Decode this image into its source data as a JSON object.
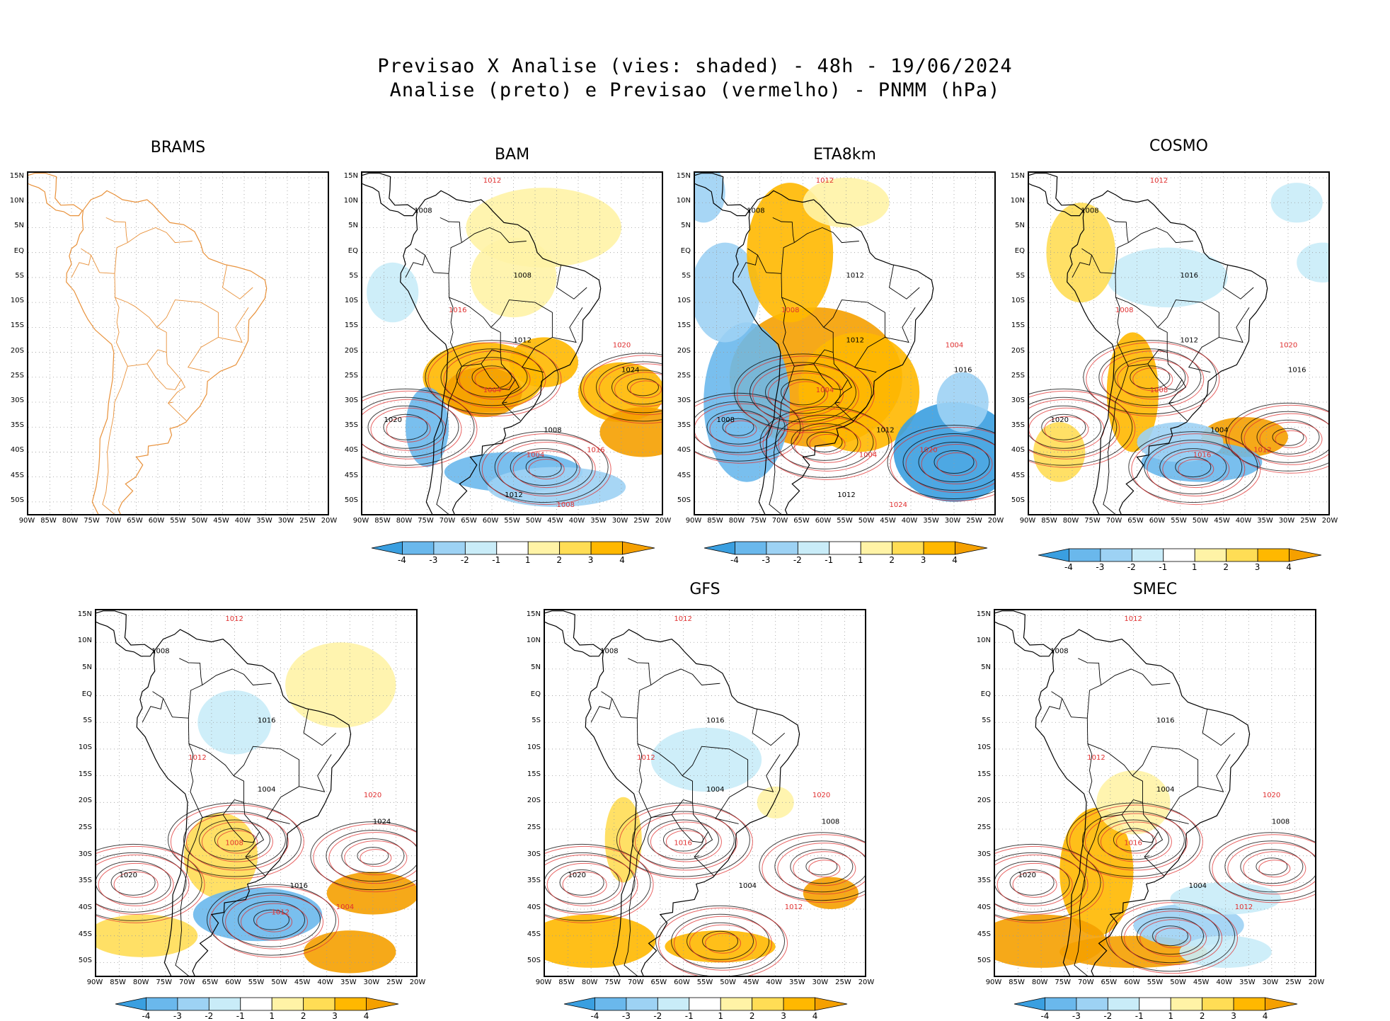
{
  "header": {
    "line1": "Previsao X Analise (vies: shaded) - 48h - 19/06/2024",
    "line2": "Analise (preto) e Previsao (vermelho) - PNMM (hPa)"
  },
  "axes": {
    "lat_labels": [
      "15N",
      "10N",
      "5N",
      "EQ",
      "5S",
      "10S",
      "15S",
      "20S",
      "25S",
      "30S",
      "35S",
      "40S",
      "45S",
      "50S"
    ],
    "lon_labels": [
      "90W",
      "85W",
      "80W",
      "75W",
      "70W",
      "65W",
      "60W",
      "55W",
      "50W",
      "45W",
      "40W",
      "35W",
      "30W",
      "25W",
      "20W"
    ]
  },
  "colorbar": {
    "labels": [
      "-4",
      "-3",
      "-2",
      "-1",
      "1",
      "2",
      "3",
      "4"
    ],
    "colors": [
      "#3a9fe0",
      "#6ab8ec",
      "#9dd2f4",
      "#c9ecf8",
      "#ffffff",
      "#fff3a6",
      "#ffdd55",
      "#ffb800",
      "#f5a000"
    ]
  },
  "panels": [
    {
      "name": "BRAMS",
      "has_colorbar": false,
      "has_data": false
    },
    {
      "name": "BAM",
      "has_colorbar": true,
      "has_data": true,
      "contours": [
        "1008",
        "1012",
        "1008",
        "1016",
        "1012",
        "1020",
        "1024",
        "1004",
        "1008",
        "1016",
        "1020",
        "1004",
        "1012",
        "1008"
      ]
    },
    {
      "name": "ETA8km",
      "has_colorbar": true,
      "has_data": true,
      "contours": [
        "1008",
        "1012",
        "1012",
        "1008",
        "1012",
        "1004",
        "1016",
        "1004",
        "1012",
        "1020",
        "1008",
        "1004",
        "1012",
        "1024"
      ]
    },
    {
      "name": "COSMO",
      "has_colorbar": true,
      "has_data": true,
      "contours": [
        "1008",
        "1012",
        "1016",
        "1008",
        "1012",
        "1020",
        "1016",
        "1008",
        "1004",
        "1012",
        "1020",
        "1016"
      ]
    },
    {
      "name": "",
      "has_colorbar": true,
      "has_data": true,
      "contours": [
        "1008",
        "1012",
        "1016",
        "1012",
        "1004",
        "1020",
        "1024",
        "1008",
        "1016",
        "1004",
        "1020",
        "1012"
      ]
    },
    {
      "name": "GFS",
      "has_colorbar": true,
      "has_data": true,
      "contours": [
        "1008",
        "1012",
        "1016",
        "1012",
        "1004",
        "1020",
        "1008",
        "1016",
        "1004",
        "1012",
        "1020"
      ]
    },
    {
      "name": "SMEC",
      "has_colorbar": true,
      "has_data": true,
      "contours": [
        "1008",
        "1012",
        "1016",
        "1012",
        "1004",
        "1020",
        "1008",
        "1016",
        "1004",
        "1012",
        "1020"
      ]
    }
  ]
}
